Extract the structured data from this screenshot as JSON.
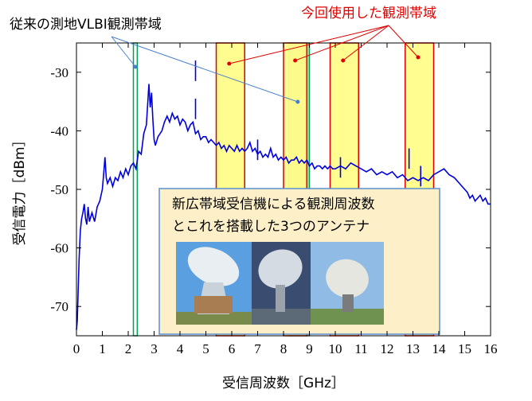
{
  "chart_data": {
    "type": "line",
    "xlabel": "受信周波数［GHz］",
    "ylabel": "受信電力［dBm］",
    "xlim": [
      0,
      16
    ],
    "ylim": [
      -75,
      -25
    ],
    "xticks": [
      0,
      1,
      2,
      3,
      4,
      5,
      6,
      7,
      8,
      9,
      10,
      11,
      12,
      13,
      14,
      15,
      16
    ],
    "yticks": [
      -30,
      -40,
      -50,
      -60,
      -70
    ],
    "grid": false,
    "series": [
      {
        "name": "",
        "color": "#0000dd",
        "points": [
          [
            0.0,
            -74.0
          ],
          [
            0.03,
            -72.5
          ],
          [
            0.06,
            -68.0
          ],
          [
            0.1,
            -62.0
          ],
          [
            0.15,
            -57.0
          ],
          [
            0.2,
            -55.0
          ],
          [
            0.25,
            -54.0
          ],
          [
            0.3,
            -52.5
          ],
          [
            0.35,
            -55.0
          ],
          [
            0.4,
            -56.0
          ],
          [
            0.45,
            -53.0
          ],
          [
            0.5,
            -55.5
          ],
          [
            0.6,
            -54.0
          ],
          [
            0.7,
            -55.5
          ],
          [
            0.8,
            -53.0
          ],
          [
            0.9,
            -52.0
          ],
          [
            1.0,
            -50.0
          ],
          [
            1.05,
            -47.5
          ],
          [
            1.1,
            -44.5
          ],
          [
            1.15,
            -48.0
          ],
          [
            1.2,
            -49.0
          ],
          [
            1.3,
            -48.0
          ],
          [
            1.4,
            -49.5
          ],
          [
            1.5,
            -48.0
          ],
          [
            1.6,
            -48.5
          ],
          [
            1.7,
            -47.0
          ],
          [
            1.8,
            -48.0
          ],
          [
            1.9,
            -46.5
          ],
          [
            2.0,
            -47.5
          ],
          [
            2.1,
            -46.0
          ],
          [
            2.2,
            -45.5
          ],
          [
            2.3,
            -46.5
          ],
          [
            2.4,
            -43.5
          ],
          [
            2.5,
            -44.0
          ],
          [
            2.6,
            -40.5
          ],
          [
            2.7,
            -39.0
          ],
          [
            2.75,
            -35.5
          ],
          [
            2.8,
            -32.0
          ],
          [
            2.85,
            -36.0
          ],
          [
            2.9,
            -33.5
          ],
          [
            2.95,
            -38.0
          ],
          [
            3.0,
            -41.5
          ],
          [
            3.05,
            -42.5
          ],
          [
            3.15,
            -41.0
          ],
          [
            3.3,
            -40.0
          ],
          [
            3.4,
            -38.5
          ],
          [
            3.5,
            -37.5
          ],
          [
            3.6,
            -38.5
          ],
          [
            3.7,
            -37.0
          ],
          [
            3.8,
            -38.0
          ],
          [
            3.9,
            -37.5
          ],
          [
            4.0,
            -39.0
          ],
          [
            4.1,
            -38.0
          ],
          [
            4.2,
            -38.5
          ],
          [
            4.3,
            -40.0
          ],
          [
            4.4,
            -39.0
          ],
          [
            4.5,
            -38.5
          ],
          [
            4.6,
            -40.5
          ],
          [
            4.7,
            -40.0
          ],
          [
            4.8,
            -41.5
          ],
          [
            4.9,
            -41.0
          ],
          [
            5.0,
            -41.0
          ],
          [
            5.1,
            -42.0
          ],
          [
            5.2,
            -41.5
          ],
          [
            5.3,
            -42.0
          ],
          [
            5.4,
            -42.5
          ],
          [
            5.5,
            -42.0
          ],
          [
            5.6,
            -43.0
          ],
          [
            5.7,
            -42.5
          ],
          [
            5.8,
            -43.5
          ],
          [
            5.9,
            -42.5
          ],
          [
            6.0,
            -43.0
          ],
          [
            6.1,
            -43.5
          ],
          [
            6.2,
            -42.5
          ],
          [
            6.3,
            -43.5
          ],
          [
            6.4,
            -43.0
          ],
          [
            6.5,
            -43.5
          ],
          [
            6.6,
            -43.0
          ],
          [
            6.7,
            -42.0
          ],
          [
            6.8,
            -43.5
          ],
          [
            6.9,
            -43.0
          ],
          [
            7.0,
            -44.0
          ],
          [
            7.1,
            -43.5
          ],
          [
            7.2,
            -44.5
          ],
          [
            7.3,
            -44.0
          ],
          [
            7.4,
            -44.5
          ],
          [
            7.5,
            -43.0
          ],
          [
            7.6,
            -44.5
          ],
          [
            7.7,
            -44.0
          ],
          [
            7.8,
            -45.0
          ],
          [
            7.9,
            -44.5
          ],
          [
            8.0,
            -45.0
          ],
          [
            8.1,
            -44.5
          ],
          [
            8.2,
            -45.5
          ],
          [
            8.3,
            -45.0
          ],
          [
            8.4,
            -45.0
          ],
          [
            8.5,
            -44.5
          ],
          [
            8.6,
            -45.5
          ],
          [
            8.7,
            -45.0
          ],
          [
            8.8,
            -45.5
          ],
          [
            8.9,
            -45.0
          ],
          [
            9.0,
            -46.0
          ],
          [
            9.1,
            -45.5
          ],
          [
            9.2,
            -46.5
          ],
          [
            9.3,
            -46.0
          ],
          [
            9.4,
            -46.0
          ],
          [
            9.5,
            -46.5
          ],
          [
            9.6,
            -46.0
          ],
          [
            9.7,
            -46.5
          ],
          [
            9.8,
            -46.0
          ],
          [
            9.9,
            -46.5
          ],
          [
            10.0,
            -46.5
          ],
          [
            10.2,
            -46.0
          ],
          [
            10.4,
            -46.5
          ],
          [
            10.6,
            -45.5
          ],
          [
            10.8,
            -46.0
          ],
          [
            11.0,
            -46.5
          ],
          [
            11.2,
            -47.0
          ],
          [
            11.4,
            -46.5
          ],
          [
            11.6,
            -47.5
          ],
          [
            11.8,
            -47.0
          ],
          [
            12.0,
            -47.5
          ],
          [
            12.2,
            -47.0
          ],
          [
            12.4,
            -48.0
          ],
          [
            12.6,
            -47.5
          ],
          [
            12.8,
            -48.5
          ],
          [
            13.0,
            -48.0
          ],
          [
            13.2,
            -48.5
          ],
          [
            13.4,
            -48.0
          ],
          [
            13.6,
            -48.5
          ],
          [
            13.8,
            -47.5
          ],
          [
            14.0,
            -47.0
          ],
          [
            14.2,
            -46.5
          ],
          [
            14.4,
            -47.5
          ],
          [
            14.6,
            -48.0
          ],
          [
            14.8,
            -49.0
          ],
          [
            15.0,
            -50.0
          ],
          [
            15.1,
            -50.5
          ],
          [
            15.2,
            -51.5
          ],
          [
            15.3,
            -51.0
          ],
          [
            15.4,
            -52.0
          ],
          [
            15.5,
            -51.5
          ],
          [
            15.6,
            -51.0
          ],
          [
            15.7,
            -52.0
          ],
          [
            15.8,
            -51.5
          ],
          [
            15.9,
            -52.5
          ],
          [
            16.0,
            -52.5
          ]
        ]
      }
    ],
    "spikes": [
      [
        4.6,
        -28.0
      ],
      [
        4.6,
        -34.5
      ],
      [
        7.0,
        -41.5
      ],
      [
        10.2,
        -44.5
      ],
      [
        12.85,
        -43.0
      ],
      [
        13.3,
        -46.0
      ]
    ],
    "bands": [
      {
        "label": "従来の測地VLBI観測帯域",
        "x": [
          2.2,
          2.35
        ],
        "fill": "#ffffff",
        "stroke": "#00a050",
        "kind": "conventional"
      },
      {
        "label": "従来の測地VLBI観測帯域",
        "x": [
          8.2,
          9.0
        ],
        "fill": "#c8d8a0",
        "stroke": "#00a050",
        "kind": "conventional"
      },
      {
        "label": "今回使用した観測帯域",
        "x": [
          5.4,
          6.5
        ],
        "fill": "#fffc8a",
        "stroke": "#e00000",
        "kind": "used"
      },
      {
        "label": "今回使用した観測帯域",
        "x": [
          8.0,
          8.9
        ],
        "fill": "#fffc8a",
        "stroke": "#e00000",
        "kind": "used"
      },
      {
        "label": "今回使用した観測帯域",
        "x": [
          9.8,
          10.9
        ],
        "fill": "#fffc8a",
        "stroke": "#e00000",
        "kind": "used"
      },
      {
        "label": "今回使用した観測帯域",
        "x": [
          12.7,
          13.8
        ],
        "fill": "#fffc8a",
        "stroke": "#e00000",
        "kind": "used"
      }
    ],
    "annotations": {
      "conventional": "従来の測地VLBI観測帯域",
      "used": "今回使用した観測帯域"
    },
    "caption": {
      "line1": "新広帯域受信機による観測周波数",
      "line2": "とこれを搭載した3つのアンテナ"
    },
    "photos": [
      "large-dish-antenna",
      "small-dish-antenna-sky",
      "small-dish-antenna-ground"
    ]
  }
}
